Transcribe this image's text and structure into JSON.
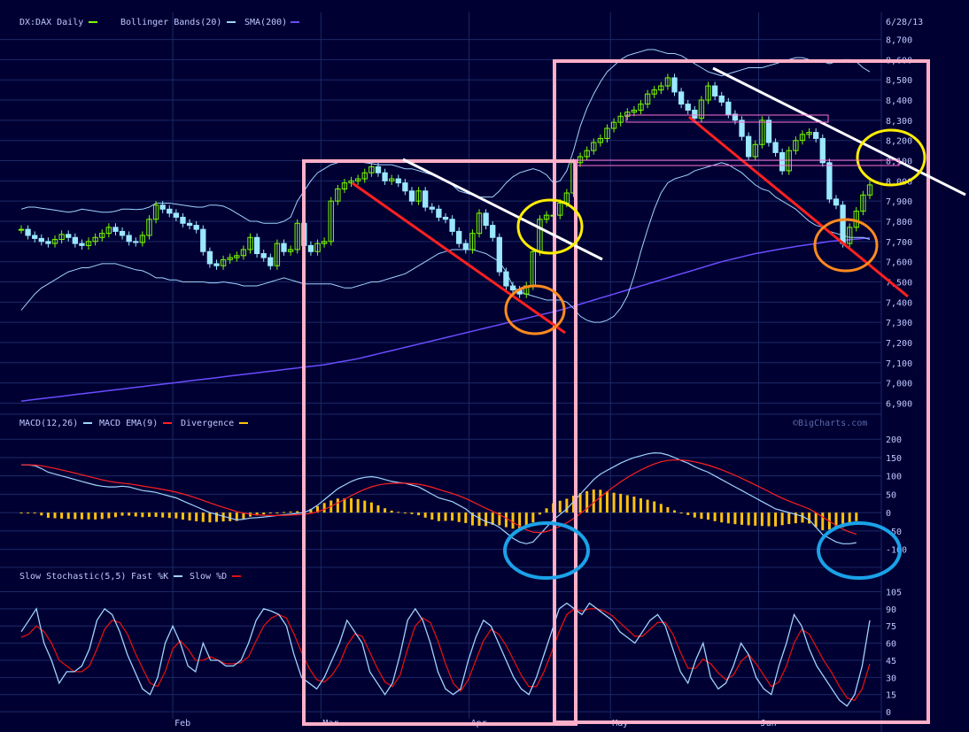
{
  "date_label": "6/28/13",
  "watermark": "©BigCharts.com",
  "colors": {
    "bg": "#000033",
    "grid": "#1c2a66",
    "up_candle": "#7cfc00",
    "down_candle": "#9be8ff",
    "bollinger": "#9fd3ff",
    "sma": "#6a4cff",
    "macd": "#9fd3ff",
    "signal": "#ff2020",
    "histogram": "#ffc20e",
    "fast_k": "#9fd3ff",
    "slow_d": "#e01010",
    "pink": "#ffb0c8",
    "white_line": "#ffffff",
    "red_line": "#ff2020",
    "yellow": "#ffee00",
    "orange": "#ff8a1f",
    "blue": "#1aa2e8"
  },
  "chart_data": [
    {
      "type": "candlestick",
      "legend": [
        {
          "label": "DX:DAX Daily",
          "color": "#7cfc00"
        },
        {
          "label": "Bollinger Bands(20)",
          "color": "#9fd3ff"
        },
        {
          "label": "SMA(200)",
          "color": "#6a4cff"
        }
      ],
      "ylim": [
        6880,
        8720
      ],
      "yticks": [
        "6,900",
        "7,000",
        "7,100",
        "7,200",
        "7,300",
        "7,400",
        "7,500",
        "7,600",
        "7,700",
        "7,800",
        "7,900",
        "8,000",
        "8,100",
        "8,200",
        "8,300",
        "8,400",
        "8,500",
        "8,600",
        "8,700"
      ],
      "closes": [
        7760,
        7730,
        7715,
        7700,
        7690,
        7710,
        7735,
        7720,
        7690,
        7680,
        7700,
        7720,
        7740,
        7770,
        7750,
        7730,
        7700,
        7695,
        7730,
        7810,
        7880,
        7860,
        7840,
        7820,
        7790,
        7780,
        7760,
        7650,
        7590,
        7580,
        7610,
        7620,
        7630,
        7660,
        7720,
        7640,
        7620,
        7580,
        7690,
        7650,
        7660,
        7790,
        7680,
        7650,
        7690,
        7700,
        7900,
        7960,
        7990,
        8000,
        8010,
        8040,
        8070,
        8040,
        8000,
        8010,
        7990,
        7950,
        7900,
        7950,
        7870,
        7860,
        7820,
        7810,
        7750,
        7690,
        7660,
        7740,
        7840,
        7780,
        7720,
        7550,
        7480,
        7460,
        7440,
        7480,
        7650,
        7810,
        7830,
        7830,
        7890,
        7940,
        8090,
        8120,
        8150,
        8190,
        8210,
        8260,
        8290,
        8320,
        8340,
        8350,
        8380,
        8430,
        8450,
        8470,
        8510,
        8440,
        8380,
        8350,
        8310,
        8400,
        8470,
        8420,
        8390,
        8330,
        8300,
        8220,
        8120,
        8180,
        8300,
        8190,
        8140,
        8050,
        8150,
        8200,
        8230,
        8240,
        8210,
        8090,
        7910,
        7880,
        7690,
        7770,
        7850,
        7930,
        7980
      ],
      "bb_upper": [
        7860,
        7870,
        7870,
        7865,
        7860,
        7855,
        7850,
        7845,
        7850,
        7860,
        7855,
        7850,
        7845,
        7845,
        7850,
        7860,
        7860,
        7858,
        7860,
        7870,
        7890,
        7890,
        7890,
        7885,
        7880,
        7875,
        7870,
        7870,
        7880,
        7880,
        7875,
        7860,
        7840,
        7820,
        7800,
        7800,
        7790,
        7790,
        7790,
        7800,
        7820,
        7900,
        7950,
        8000,
        8040,
        8060,
        8080,
        8090,
        8100,
        8100,
        8095,
        8090,
        8085,
        8080,
        8080,
        8080,
        8070,
        8060,
        8060,
        8050,
        8040,
        8030,
        8020,
        8000,
        7980,
        7950,
        7940,
        7930,
        7920,
        7920,
        7920,
        7950,
        7990,
        8020,
        8040,
        8050,
        8060,
        8050,
        8030,
        7990,
        8000,
        8050,
        8150,
        8270,
        8360,
        8430,
        8490,
        8540,
        8570,
        8600,
        8620,
        8630,
        8640,
        8650,
        8650,
        8640,
        8630,
        8630,
        8620,
        8600,
        8580,
        8560,
        8540,
        8530,
        8520,
        8530,
        8540,
        8550,
        8560,
        8560,
        8560,
        8570,
        8580,
        8590,
        8600,
        8610,
        8610,
        8600,
        8590,
        8590,
        8580,
        8590,
        8600,
        8600,
        8590,
        8560,
        8540
      ],
      "bb_lower": [
        7360,
        7400,
        7440,
        7470,
        7490,
        7510,
        7530,
        7550,
        7560,
        7570,
        7570,
        7580,
        7590,
        7590,
        7590,
        7580,
        7570,
        7560,
        7555,
        7540,
        7520,
        7520,
        7510,
        7510,
        7500,
        7500,
        7500,
        7500,
        7495,
        7495,
        7500,
        7495,
        7490,
        7480,
        7480,
        7480,
        7490,
        7500,
        7510,
        7520,
        7510,
        7500,
        7490,
        7490,
        7490,
        7490,
        7490,
        7480,
        7470,
        7470,
        7480,
        7490,
        7500,
        7500,
        7510,
        7520,
        7530,
        7540,
        7560,
        7580,
        7600,
        7620,
        7640,
        7650,
        7660,
        7660,
        7660,
        7660,
        7650,
        7640,
        7620,
        7600,
        7550,
        7480,
        7450,
        7440,
        7430,
        7420,
        7410,
        7410,
        7410,
        7400,
        7370,
        7330,
        7310,
        7300,
        7300,
        7310,
        7330,
        7370,
        7430,
        7530,
        7650,
        7760,
        7860,
        7940,
        7990,
        8010,
        8020,
        8030,
        8050,
        8060,
        8070,
        8080,
        8090,
        8080,
        8060,
        8040,
        8010,
        7980,
        7960,
        7950,
        7920,
        7900,
        7880,
        7860,
        7830,
        7800,
        7780,
        7770,
        7750,
        7740,
        7730,
        7720,
        7720,
        7720,
        7710
      ],
      "sma200": [
        6910,
        6914,
        6918,
        6922,
        6926,
        6930,
        6934,
        6938,
        6942,
        6946,
        6950,
        6954,
        6958,
        6962,
        6966,
        6970,
        6974,
        6978,
        6982,
        6986,
        6990,
        6994,
        6998,
        7002,
        7006,
        7010,
        7014,
        7018,
        7022,
        7026,
        7030,
        7034,
        7038,
        7042,
        7046,
        7050,
        7054,
        7058,
        7062,
        7066,
        7070,
        7074,
        7078,
        7082,
        7086,
        7090,
        7096,
        7102,
        7108,
        7114,
        7120,
        7128,
        7136,
        7144,
        7152,
        7160,
        7168,
        7176,
        7184,
        7192,
        7200,
        7208,
        7216,
        7224,
        7232,
        7240,
        7248,
        7256,
        7264,
        7272,
        7280,
        7288,
        7296,
        7304,
        7312,
        7320,
        7328,
        7336,
        7344,
        7352,
        7360,
        7370,
        7380,
        7390,
        7400,
        7410,
        7420,
        7430,
        7440,
        7450,
        7460,
        7470,
        7480,
        7490,
        7500,
        7510,
        7520,
        7530,
        7540,
        7550,
        7560,
        7570,
        7580,
        7590,
        7600,
        7608,
        7616,
        7624,
        7632,
        7640,
        7646,
        7652,
        7658,
        7664,
        7670,
        7675,
        7680,
        7685,
        7690,
        7695,
        7700,
        7703,
        7706,
        7709,
        7712,
        7715,
        7718
      ]
    },
    {
      "type": "line",
      "legend": [
        {
          "label": "MACD(12,26)",
          "color": "#9fd3ff"
        },
        {
          "label": "MACD EMA(9)",
          "color": "#ff2020"
        },
        {
          "label": "Divergence",
          "color": "#ffc20e"
        }
      ],
      "ylim": [
        -130,
        215
      ],
      "yticks": [
        "-100",
        "-50",
        "0",
        "50",
        "100",
        "150",
        "200"
      ],
      "macd": [
        130,
        130,
        128,
        120,
        110,
        105,
        100,
        95,
        90,
        85,
        80,
        75,
        72,
        70,
        70,
        72,
        70,
        65,
        60,
        58,
        55,
        50,
        45,
        40,
        32,
        24,
        16,
        8,
        0,
        -5,
        -10,
        -15,
        -20,
        -18,
        -15,
        -14,
        -12,
        -10,
        -8,
        -6,
        -4,
        -2,
        0,
        8,
        20,
        35,
        50,
        65,
        75,
        85,
        92,
        96,
        98,
        95,
        90,
        85,
        82,
        80,
        75,
        70,
        60,
        50,
        40,
        35,
        30,
        20,
        10,
        -5,
        -15,
        -25,
        -30,
        -40,
        -55,
        -70,
        -80,
        -85,
        -80,
        -60,
        -40,
        -20,
        -5,
        10,
        30,
        50,
        70,
        90,
        105,
        115,
        125,
        135,
        143,
        150,
        155,
        160,
        163,
        162,
        157,
        150,
        142,
        135,
        125,
        117,
        110,
        100,
        90,
        80,
        70,
        60,
        50,
        40,
        30,
        20,
        10,
        5,
        0,
        -5,
        -10,
        -20,
        -40,
        -60,
        -70,
        -80,
        -85,
        -85,
        -82
      ]
    },
    {
      "type": "line",
      "legend": [
        {
          "label": "Slow Stochastic(5,5)",
          "color": "#ffffff"
        },
        {
          "label": "Fast %K",
          "color": "#9fd3ff"
        },
        {
          "label": "Slow %D",
          "color": "#e01010"
        }
      ],
      "ylim": [
        -3,
        110
      ],
      "yticks": [
        "0",
        "15",
        "30",
        "45",
        "60",
        "75",
        "90",
        "105"
      ],
      "fast_k": [
        70,
        80,
        90,
        60,
        45,
        25,
        35,
        35,
        40,
        55,
        80,
        90,
        85,
        70,
        50,
        35,
        20,
        15,
        30,
        60,
        75,
        60,
        40,
        35,
        60,
        45,
        45,
        40,
        40,
        45,
        60,
        80,
        90,
        88,
        85,
        75,
        50,
        30,
        25,
        20,
        30,
        45,
        60,
        80,
        70,
        60,
        35,
        25,
        15,
        25,
        50,
        80,
        90,
        80,
        60,
        35,
        20,
        15,
        20,
        45,
        65,
        80,
        75,
        60,
        45,
        30,
        20,
        15,
        30,
        50,
        70,
        90,
        95,
        90,
        85,
        95,
        90,
        85,
        80,
        70,
        65,
        60,
        70,
        80,
        85,
        75,
        55,
        35,
        25,
        45,
        60,
        30,
        20,
        25,
        40,
        60,
        50,
        30,
        20,
        15,
        40,
        60,
        85,
        75,
        55,
        40,
        30,
        20,
        10,
        5,
        15,
        40,
        80
      ],
      "slow_d": [
        65,
        68,
        75,
        70,
        60,
        45,
        40,
        35,
        35,
        40,
        55,
        72,
        80,
        78,
        68,
        52,
        38,
        25,
        22,
        35,
        55,
        62,
        55,
        45,
        45,
        48,
        45,
        42,
        42,
        43,
        48,
        62,
        75,
        82,
        85,
        82,
        68,
        52,
        38,
        28,
        26,
        32,
        42,
        58,
        68,
        66,
        52,
        38,
        26,
        22,
        32,
        55,
        75,
        82,
        78,
        62,
        42,
        25,
        18,
        28,
        45,
        62,
        72,
        68,
        58,
        45,
        32,
        22,
        22,
        35,
        52,
        70,
        85,
        90,
        88,
        90,
        90,
        88,
        84,
        78,
        72,
        66,
        66,
        72,
        78,
        78,
        68,
        52,
        38,
        38,
        46,
        42,
        34,
        28,
        32,
        44,
        50,
        42,
        32,
        22,
        26,
        40,
        60,
        72,
        68,
        56,
        44,
        34,
        22,
        12,
        10,
        20,
        42
      ]
    }
  ],
  "months": [
    "Feb",
    "Mar",
    "Apr",
    "May",
    "Jun"
  ]
}
